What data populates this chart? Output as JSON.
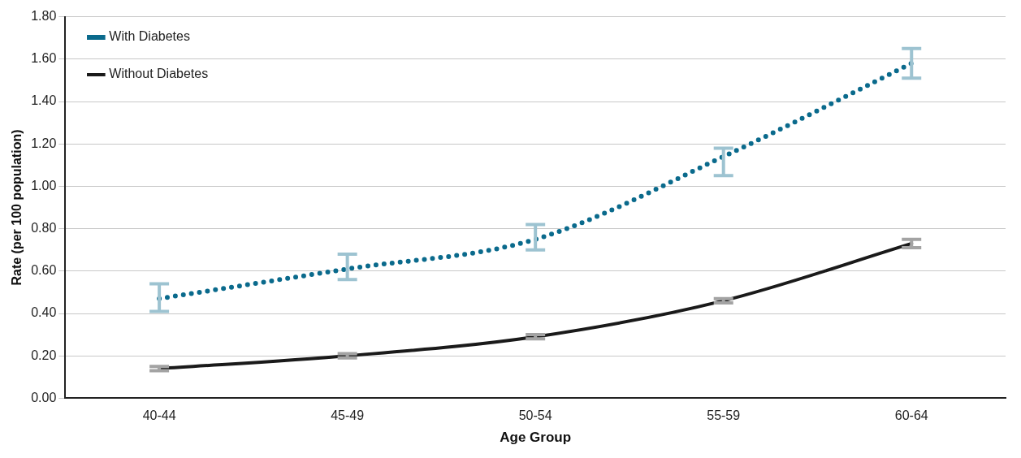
{
  "chart_data": {
    "type": "line",
    "xlabel": "Age Group",
    "ylabel": "Rate (per 100 population)",
    "categories": [
      "40-44",
      "45-49",
      "50-54",
      "55-59",
      "60-64"
    ],
    "series": [
      {
        "name": "With Diabetes",
        "color": "#0a6a8c",
        "line_style": "dotted",
        "values": [
          0.47,
          0.61,
          0.75,
          1.14,
          1.58
        ],
        "errors": [
          [
            0.41,
            0.54
          ],
          [
            0.56,
            0.68
          ],
          [
            0.7,
            0.82
          ],
          [
            1.05,
            1.18
          ],
          [
            1.51,
            1.65
          ]
        ]
      },
      {
        "name": "Without Diabetes",
        "color": "#1a1a1a",
        "line_style": "solid",
        "values": [
          0.14,
          0.2,
          0.29,
          0.46,
          0.73
        ],
        "errors": [
          [
            0.13,
            0.15
          ],
          [
            0.19,
            0.21
          ],
          [
            0.28,
            0.3
          ],
          [
            0.45,
            0.47
          ],
          [
            0.71,
            0.75
          ]
        ]
      }
    ],
    "ylim": [
      0,
      1.8
    ],
    "yticks": [
      {
        "value": 0,
        "label": "0.00"
      },
      {
        "value": 0.2,
        "label": "0.20"
      },
      {
        "value": 0.4,
        "label": "0.40"
      },
      {
        "value": 0.6,
        "label": "0.60"
      },
      {
        "value": 0.8,
        "label": "0.80"
      },
      {
        "value": 1.0,
        "label": "1.00"
      },
      {
        "value": 1.2,
        "label": "1.20"
      },
      {
        "value": 1.4,
        "label": "1.40"
      },
      {
        "value": 1.6,
        "label": "1.60"
      },
      {
        "value": 1.8,
        "label": "1.80"
      }
    ],
    "grid": "y",
    "legend": "top left",
    "marker": "none"
  }
}
